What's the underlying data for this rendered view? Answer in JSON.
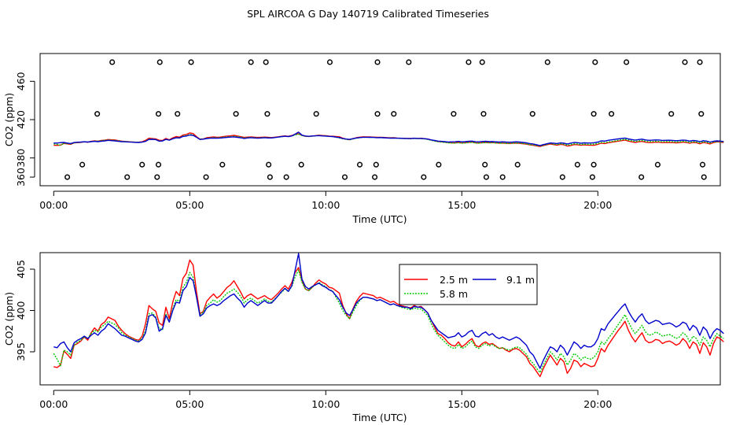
{
  "title": "SPL AIRCOA G  Day 140719  Calibrated Timeseries",
  "chart_data": [
    {
      "type": "scatter+line",
      "title": "",
      "xlabel": "Time (UTC)",
      "ylabel": "CO2 (ppm)",
      "xlim": [
        -0.5,
        24.5
      ],
      "ylim": [
        351,
        489
      ],
      "x_ticks": [
        0,
        5,
        10,
        15,
        20
      ],
      "x_tick_labels": [
        "00:00",
        "05:00",
        "10:00",
        "15:00",
        "20:00"
      ],
      "y_ticks": [
        360,
        380,
        420,
        460
      ],
      "y_tick_labels": [
        "360",
        "380",
        "420",
        "460"
      ],
      "calibration_points": [
        {
          "x": 0.5,
          "y": 360
        },
        {
          "x": 1.05,
          "y": 373
        },
        {
          "x": 1.6,
          "y": 426
        },
        {
          "x": 2.15,
          "y": 480
        },
        {
          "x": 2.7,
          "y": 360
        },
        {
          "x": 3.25,
          "y": 373
        },
        {
          "x": 3.8,
          "y": 360
        },
        {
          "x": 3.85,
          "y": 373
        },
        {
          "x": 3.85,
          "y": 426
        },
        {
          "x": 3.9,
          "y": 480
        },
        {
          "x": 4.55,
          "y": 426
        },
        {
          "x": 5.05,
          "y": 480
        },
        {
          "x": 5.6,
          "y": 360
        },
        {
          "x": 6.2,
          "y": 373
        },
        {
          "x": 6.7,
          "y": 426
        },
        {
          "x": 7.25,
          "y": 480
        },
        {
          "x": 7.8,
          "y": 480
        },
        {
          "x": 7.85,
          "y": 426
        },
        {
          "x": 7.9,
          "y": 373
        },
        {
          "x": 7.95,
          "y": 360
        },
        {
          "x": 8.55,
          "y": 360
        },
        {
          "x": 9.1,
          "y": 373
        },
        {
          "x": 9.65,
          "y": 426
        },
        {
          "x": 10.15,
          "y": 480
        },
        {
          "x": 10.7,
          "y": 360
        },
        {
          "x": 11.25,
          "y": 373
        },
        {
          "x": 11.8,
          "y": 360
        },
        {
          "x": 11.85,
          "y": 373
        },
        {
          "x": 11.9,
          "y": 426
        },
        {
          "x": 11.9,
          "y": 480
        },
        {
          "x": 12.5,
          "y": 426
        },
        {
          "x": 13.05,
          "y": 480
        },
        {
          "x": 13.6,
          "y": 360
        },
        {
          "x": 14.15,
          "y": 373
        },
        {
          "x": 14.7,
          "y": 426
        },
        {
          "x": 15.25,
          "y": 480
        },
        {
          "x": 15.75,
          "y": 480
        },
        {
          "x": 15.8,
          "y": 426
        },
        {
          "x": 15.85,
          "y": 373
        },
        {
          "x": 15.9,
          "y": 360
        },
        {
          "x": 16.5,
          "y": 360
        },
        {
          "x": 17.05,
          "y": 373
        },
        {
          "x": 17.6,
          "y": 426
        },
        {
          "x": 18.15,
          "y": 480
        },
        {
          "x": 18.7,
          "y": 360
        },
        {
          "x": 19.25,
          "y": 373
        },
        {
          "x": 19.8,
          "y": 360
        },
        {
          "x": 19.85,
          "y": 373
        },
        {
          "x": 19.85,
          "y": 426
        },
        {
          "x": 19.9,
          "y": 480
        },
        {
          "x": 20.5,
          "y": 426
        },
        {
          "x": 21.05,
          "y": 480
        },
        {
          "x": 21.6,
          "y": 360
        },
        {
          "x": 22.2,
          "y": 373
        },
        {
          "x": 22.7,
          "y": 426
        },
        {
          "x": 23.2,
          "y": 480
        },
        {
          "x": 23.75,
          "y": 480
        },
        {
          "x": 23.8,
          "y": 426
        },
        {
          "x": 23.85,
          "y": 373
        },
        {
          "x": 23.9,
          "y": 360
        }
      ]
    },
    {
      "type": "line",
      "title": "",
      "xlabel": "Time (UTC)",
      "ylabel": "CO2 (ppm)",
      "xlim": [
        -0.5,
        24.5
      ],
      "ylim": [
        391,
        407
      ],
      "x_ticks": [
        0,
        5,
        10,
        15,
        20
      ],
      "x_tick_labels": [
        "00:00",
        "05:00",
        "10:00",
        "15:00",
        "20:00"
      ],
      "y_ticks": [
        395,
        400,
        405
      ],
      "y_tick_labels": [
        "395",
        "400",
        "405"
      ],
      "legend": "top-center",
      "series": [
        {
          "name": "2.5 m",
          "color": "#ff0000",
          "x_start": 0.0,
          "x_step": 0.125,
          "values": [
            393.2,
            393.1,
            393.4,
            395.1,
            394.7,
            394.2,
            395.8,
            396.0,
            396.3,
            396.8,
            396.4,
            397.3,
            397.9,
            397.5,
            398.3,
            398.6,
            399.2,
            399.0,
            398.8,
            398.1,
            397.6,
            397.2,
            396.9,
            396.7,
            396.5,
            396.4,
            396.9,
            398.4,
            400.6,
            400.2,
            399.9,
            398.5,
            398.2,
            400.4,
            399.0,
            401.0,
            402.3,
            401.8,
            403.9,
            404.5,
            406.1,
            405.5,
            402.2,
            399.6,
            399.9,
            401.1,
            401.6,
            402.0,
            401.5,
            401.8,
            402.3,
            402.8,
            403.1,
            403.6,
            402.9,
            402.2,
            401.4,
            401.8,
            402.0,
            401.7,
            401.4,
            401.6,
            401.8,
            401.5,
            401.3,
            401.7,
            402.1,
            402.6,
            403.0,
            402.6,
            403.4,
            404.6,
            405.2,
            403.6,
            402.6,
            402.4,
            402.8,
            403.3,
            403.7,
            403.4,
            403.2,
            402.8,
            402.7,
            402.4,
            402.1,
            400.6,
            399.6,
            399.0,
            400.2,
            401.1,
            401.7,
            402.1,
            402.0,
            401.9,
            401.8,
            401.5,
            401.6,
            401.4,
            401.2,
            401.0,
            401.1,
            400.8,
            400.6,
            400.5,
            400.4,
            400.3,
            400.6,
            400.4,
            400.5,
            400.1,
            399.7,
            398.8,
            398.0,
            397.2,
            397.0,
            396.6,
            396.1,
            395.8,
            395.7,
            396.2,
            395.6,
            395.9,
            396.3,
            396.6,
            395.8,
            395.6,
            396.0,
            396.2,
            395.9,
            396.0,
            395.7,
            395.4,
            395.5,
            395.2,
            395.0,
            395.3,
            395.4,
            395.2,
            394.8,
            394.4,
            393.6,
            393.2,
            392.6,
            392.0,
            393.0,
            393.8,
            394.6,
            394.0,
            393.4,
            394.2,
            393.8,
            392.4,
            393.0,
            394.0,
            393.8,
            393.2,
            393.6,
            393.4,
            393.2,
            393.3,
            394.2,
            395.4,
            395.0,
            395.8,
            396.4,
            397.0,
            397.6,
            398.1,
            398.7,
            397.6,
            396.8,
            396.2,
            396.8,
            397.3,
            396.4,
            396.1,
            396.2,
            396.5,
            396.4,
            396.0,
            396.2,
            396.3,
            396.1,
            395.8,
            396.0,
            396.6,
            396.2,
            395.4,
            396.2,
            395.9,
            394.8,
            396.1,
            395.6,
            394.6,
            396.0,
            396.8,
            396.6,
            396.2
          ]
        },
        {
          "name": "5.8 m",
          "color": "#00cc00",
          "x_start": 0.0,
          "x_step": 0.125,
          "values": [
            394.8,
            394.1,
            393.3,
            395.2,
            395.0,
            394.6,
            395.8,
            396.2,
            396.4,
            396.8,
            396.6,
            397.2,
            397.6,
            397.4,
            398.0,
            398.3,
            398.7,
            398.5,
            398.3,
            397.9,
            397.3,
            397.0,
            396.8,
            396.6,
            396.4,
            396.3,
            396.6,
            397.6,
            399.6,
            399.7,
            399.2,
            397.8,
            397.7,
            399.6,
            398.6,
            400.2,
            401.3,
            401.1,
            402.8,
            403.4,
            404.6,
            404.0,
            401.5,
            399.5,
            399.8,
            400.6,
            400.9,
            401.3,
            401.0,
            401.2,
            401.7,
            402.1,
            402.3,
            402.6,
            402.2,
            401.7,
            400.9,
            401.3,
            401.5,
            401.2,
            400.9,
            401.1,
            401.4,
            401.1,
            401.0,
            401.4,
            401.8,
            402.2,
            402.6,
            402.3,
            402.9,
            404.1,
            404.9,
            403.4,
            402.6,
            402.4,
            402.8,
            403.1,
            403.4,
            403.1,
            402.9,
            402.5,
            402.4,
            401.6,
            400.9,
            400.0,
            399.4,
            399.0,
            399.8,
            400.6,
            401.2,
            401.6,
            401.6,
            401.5,
            401.4,
            401.2,
            401.3,
            401.1,
            400.9,
            400.7,
            400.8,
            400.6,
            400.4,
            400.3,
            400.2,
            400.1,
            400.3,
            400.2,
            400.2,
            399.8,
            399.4,
            398.4,
            397.6,
            397.0,
            396.6,
            396.2,
            395.8,
            395.5,
            395.4,
            395.9,
            395.4,
            395.6,
            396.0,
            396.3,
            395.6,
            395.4,
            395.8,
            396.0,
            395.7,
            395.9,
            395.6,
            395.4,
            395.5,
            395.3,
            395.2,
            395.4,
            395.6,
            395.5,
            395.1,
            394.7,
            394.0,
            393.6,
            393.0,
            392.5,
            393.4,
            394.2,
            395.0,
            394.6,
            394.0,
            394.8,
            394.4,
            393.4,
            394.0,
            394.8,
            394.5,
            394.0,
            394.4,
            394.2,
            394.1,
            394.4,
            395.0,
            396.2,
            395.9,
            396.6,
            397.1,
            397.7,
            398.3,
            398.9,
            399.5,
            398.6,
            397.8,
            397.2,
            397.7,
            398.2,
            397.4,
            397.0,
            397.1,
            397.4,
            397.2,
            396.9,
            397.0,
            397.1,
            396.9,
            396.6,
            396.8,
            397.3,
            397.0,
            396.2,
            396.9,
            396.6,
            395.8,
            396.8,
            396.4,
            395.6,
            396.6,
            397.2,
            396.9,
            396.6
          ]
        },
        {
          "name": "9.1 m",
          "color": "#0000cc",
          "x_start": 0.0,
          "x_step": 0.125,
          "values": [
            395.6,
            395.5,
            396.0,
            396.2,
            395.5,
            395.0,
            396.1,
            396.4,
            396.6,
            396.9,
            396.6,
            397.0,
            397.3,
            397.0,
            397.5,
            397.8,
            398.4,
            398.1,
            397.8,
            397.4,
            397.0,
            396.9,
            396.7,
            396.5,
            396.3,
            396.2,
            396.5,
            397.3,
            399.3,
            399.5,
            399.1,
            397.5,
            397.8,
            399.4,
            398.6,
            400.0,
            401.0,
            400.9,
            402.4,
            402.9,
            404.0,
            403.6,
            401.6,
            399.3,
            399.6,
            400.3,
            400.6,
            400.8,
            400.6,
            400.8,
            401.2,
            401.5,
            401.8,
            402.0,
            401.5,
            401.1,
            400.4,
            400.9,
            401.2,
            400.9,
            400.6,
            400.9,
            401.2,
            400.9,
            400.9,
            401.3,
            401.8,
            402.3,
            402.7,
            402.3,
            403.0,
            404.9,
            406.9,
            403.8,
            402.9,
            402.6,
            402.9,
            403.1,
            403.3,
            403.0,
            402.8,
            402.5,
            402.3,
            401.8,
            401.3,
            400.4,
            399.7,
            399.4,
            400.1,
            400.9,
            401.3,
            401.6,
            401.6,
            401.5,
            401.4,
            401.2,
            401.3,
            401.1,
            400.9,
            400.7,
            400.8,
            400.6,
            400.5,
            400.4,
            400.4,
            400.2,
            400.5,
            400.4,
            400.4,
            400.1,
            399.7,
            398.8,
            398.2,
            397.6,
            397.3,
            397.0,
            396.7,
            396.8,
            396.9,
            397.3,
            396.8,
            397.0,
            397.4,
            397.6,
            396.9,
            396.8,
            397.2,
            397.4,
            397.0,
            397.2,
            396.8,
            396.6,
            396.8,
            396.6,
            396.4,
            396.6,
            396.8,
            396.6,
            396.2,
            395.8,
            395.0,
            394.6,
            393.8,
            393.0,
            394.0,
            394.8,
            395.6,
            395.4,
            395.0,
            395.8,
            395.4,
            394.6,
            395.4,
            396.2,
            395.9,
            395.4,
            395.8,
            395.6,
            395.6,
            395.9,
            396.6,
            397.8,
            397.6,
            398.4,
            398.9,
            399.4,
            399.9,
            400.4,
            400.8,
            399.9,
            399.2,
            398.6,
            399.2,
            399.6,
            398.8,
            398.4,
            398.6,
            398.8,
            398.7,
            398.3,
            398.4,
            398.5,
            398.3,
            398.0,
            398.2,
            398.6,
            398.4,
            397.6,
            398.2,
            397.9,
            397.0,
            398.0,
            397.6,
            396.6,
            397.4,
            397.8,
            397.6,
            397.2
          ]
        }
      ]
    }
  ]
}
